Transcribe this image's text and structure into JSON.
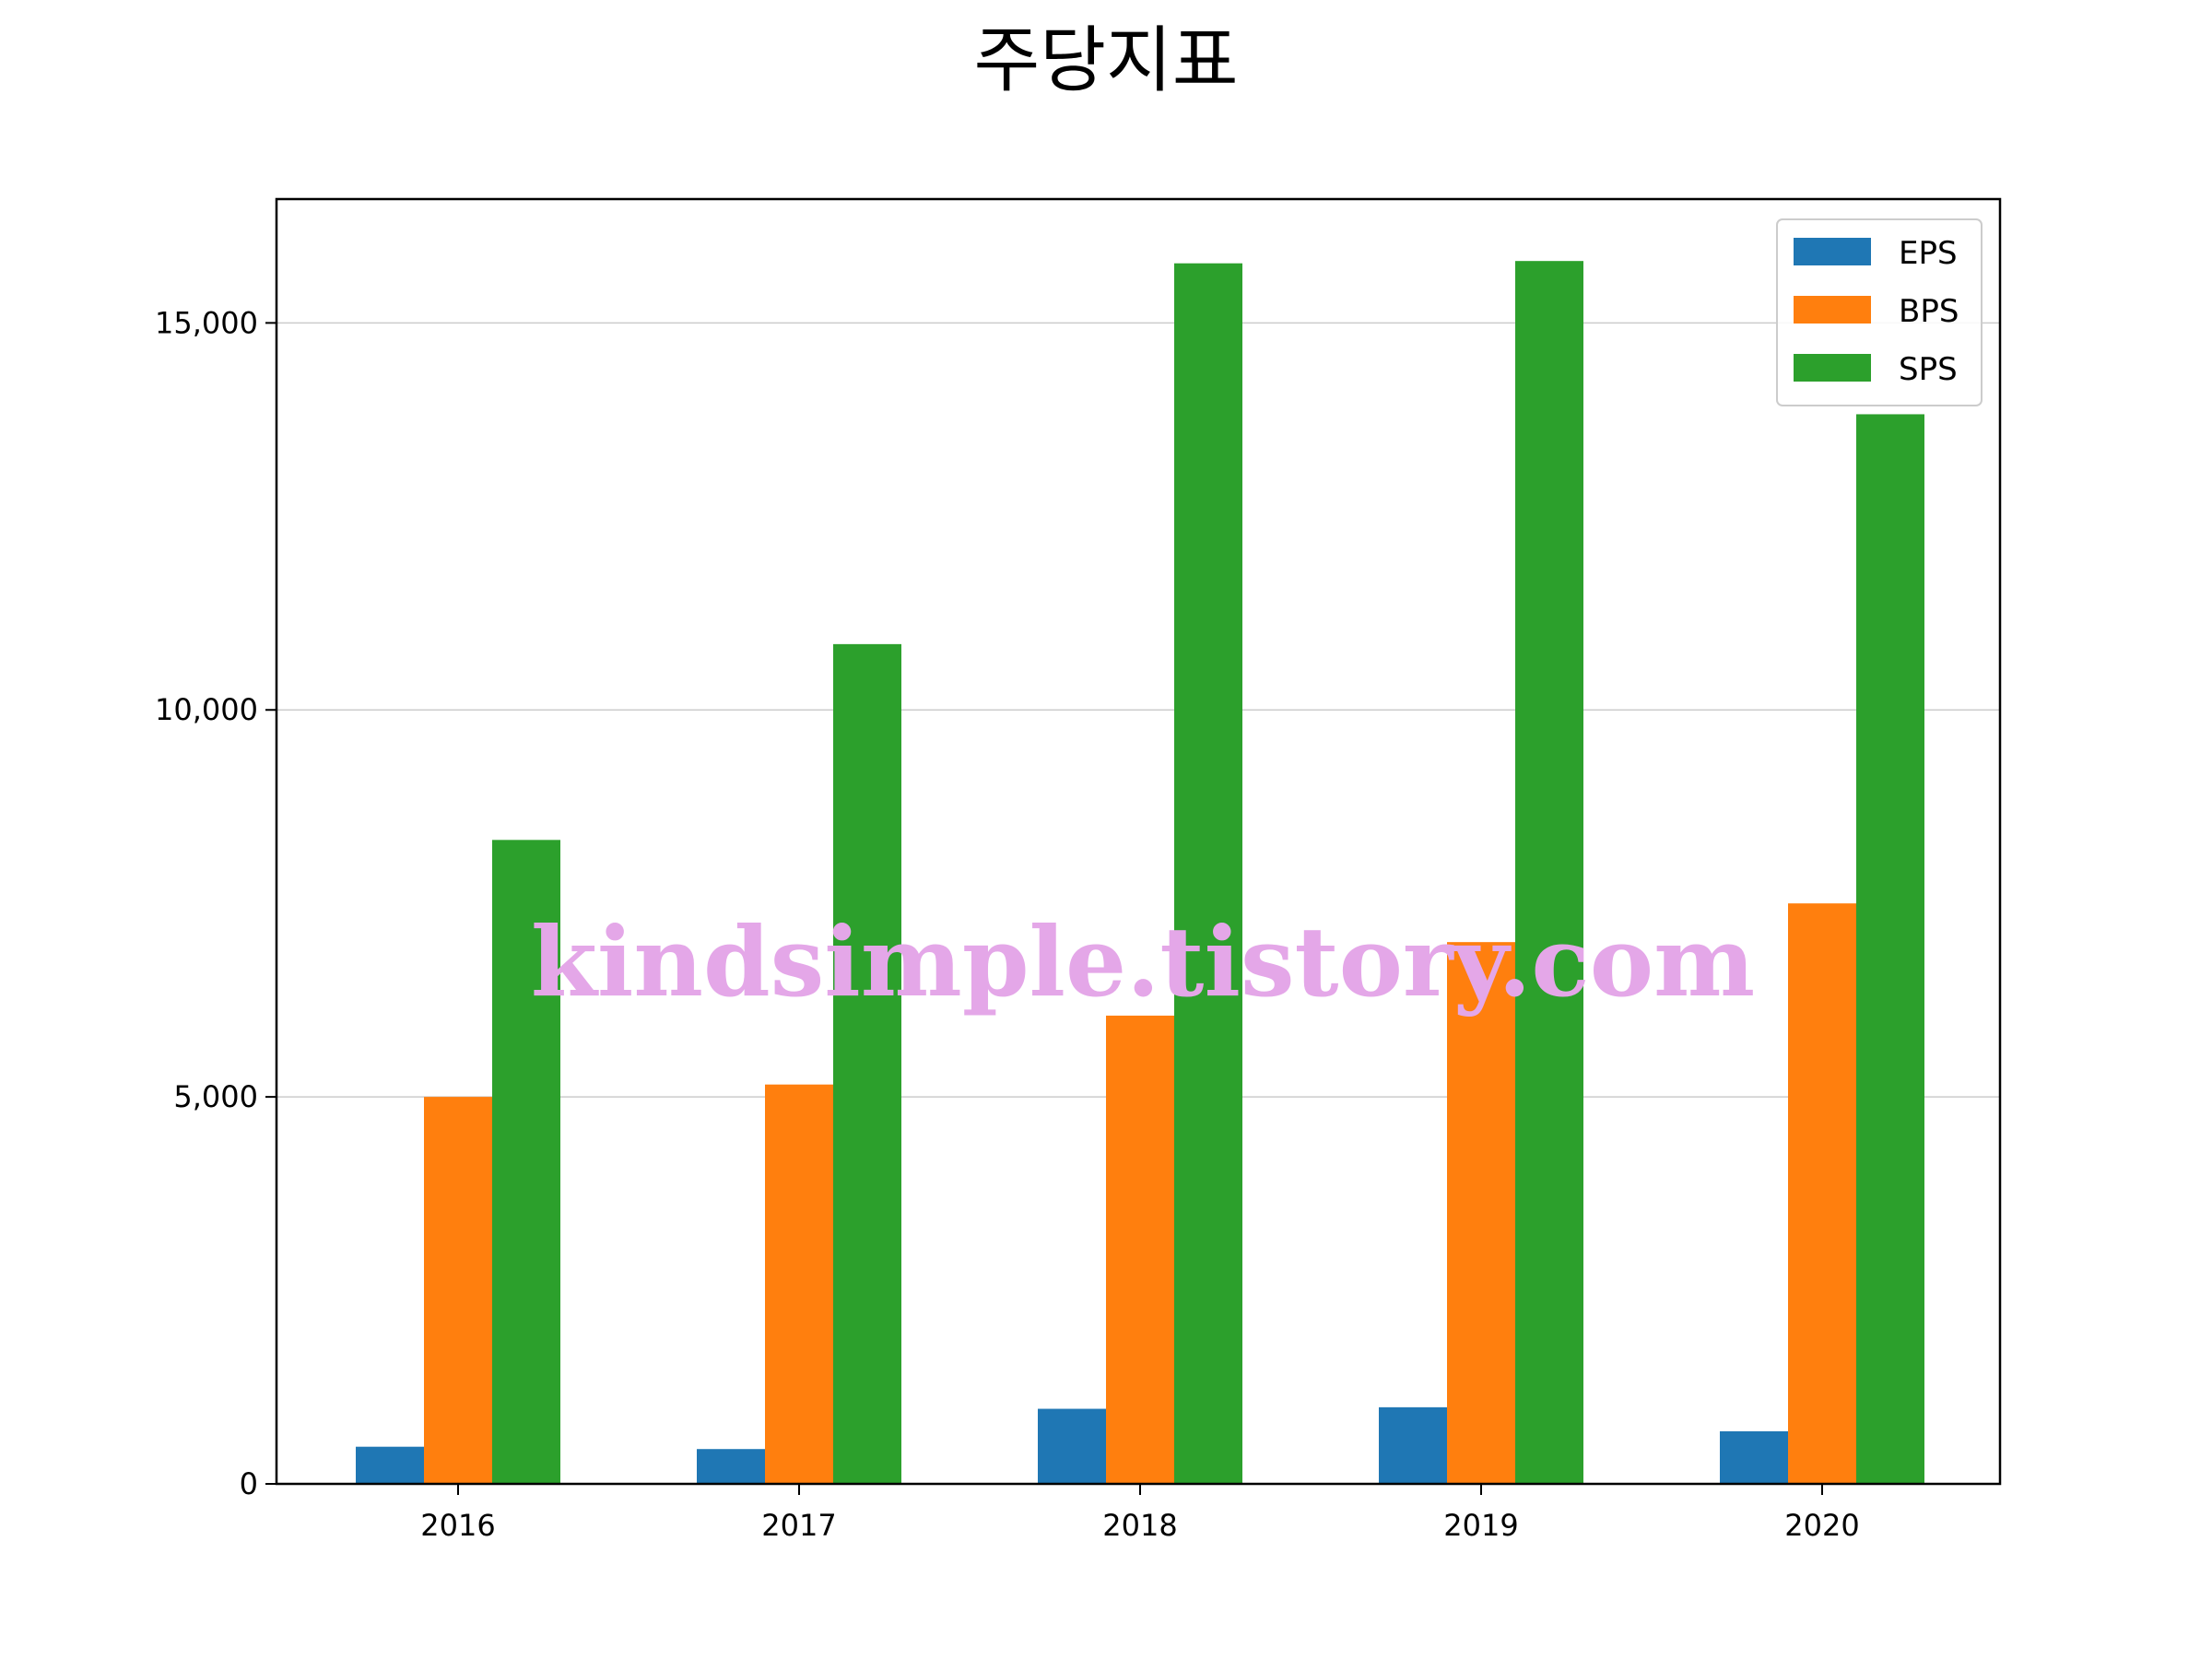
{
  "chart_data": {
    "type": "bar",
    "title": "주당지표",
    "xlabel": "",
    "ylabel": "",
    "categories": [
      "2016",
      "2017",
      "2018",
      "2019",
      "2020"
    ],
    "series": [
      {
        "name": "EPS",
        "color": "#1f77b4",
        "values": [
          480,
          450,
          970,
          990,
          680
        ]
      },
      {
        "name": "BPS",
        "color": "#ff7f0e",
        "values": [
          5000,
          5160,
          6050,
          7000,
          7500
        ]
      },
      {
        "name": "SPS",
        "color": "#2ca02c",
        "values": [
          8320,
          10850,
          15770,
          15800,
          13820
        ]
      }
    ],
    "ylim": [
      0,
      16600
    ],
    "yticks": [
      0,
      5000,
      10000,
      15000
    ],
    "ytick_labels": [
      "0",
      "5,000",
      "10,000",
      "15,000"
    ],
    "grid": "horizontal",
    "legend_position": "top-right"
  },
  "watermark": "kindsimple.tistory.com"
}
